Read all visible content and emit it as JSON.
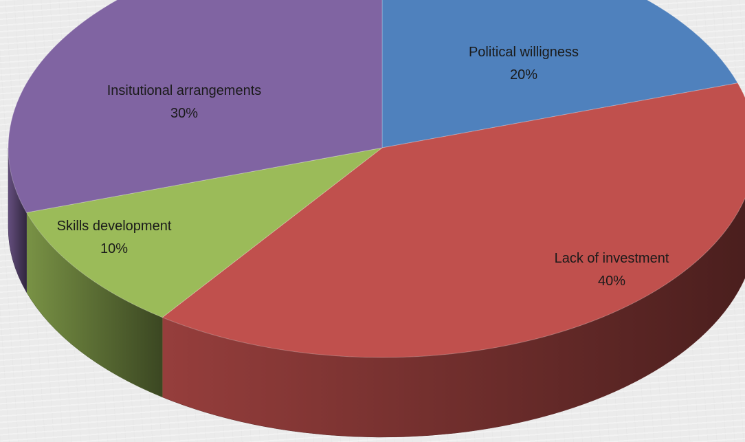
{
  "chart_data": {
    "type": "pie",
    "style": "3d",
    "title": "",
    "legend": "none",
    "slices": [
      {
        "name": "Political willigness",
        "value": 20,
        "label": "20%",
        "color": "#4f81bd"
      },
      {
        "name": "Lack of investment",
        "value": 40,
        "label": "40%",
        "color": "#c0504d"
      },
      {
        "name": "Skills development",
        "value": 10,
        "label": "10%",
        "color": "#9bbb59"
      },
      {
        "name": "Insitutional arrangements",
        "value": 30,
        "label": "30%",
        "color": "#8064a2"
      }
    ]
  }
}
